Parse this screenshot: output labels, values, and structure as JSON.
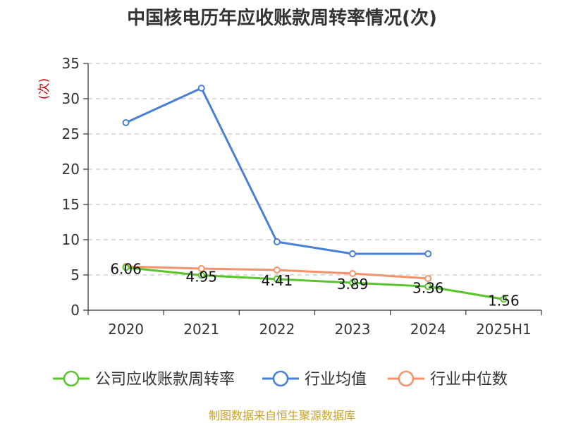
{
  "chart_data": {
    "type": "line",
    "title": "中国核电历年应收账款周转率情况(次)",
    "ylabel": "(次)",
    "xlabel": "",
    "categories": [
      "2020",
      "2021",
      "2022",
      "2023",
      "2024",
      "2025H1"
    ],
    "ylim": [
      0,
      35
    ],
    "yticks": [
      0,
      5,
      10,
      15,
      20,
      25,
      30,
      35
    ],
    "grid": true,
    "legend_position": "bottom",
    "series": [
      {
        "name": "公司应收账款周转率",
        "color": "#5ac42a",
        "values": [
          6.06,
          4.95,
          4.41,
          3.89,
          3.36,
          1.56
        ],
        "labels": [
          "6.06",
          "4.95",
          "4.41",
          "3.89",
          "3.36",
          "1.56"
        ]
      },
      {
        "name": "行业均值",
        "color": "#4a7fd8",
        "values": [
          26.6,
          31.5,
          9.7,
          8.0,
          8.0,
          null
        ]
      },
      {
        "name": "行业中位数",
        "color": "#f5926a",
        "values": [
          6.2,
          5.9,
          5.7,
          5.2,
          4.5,
          null
        ]
      }
    ]
  },
  "source": "制图数据来自恒生聚源数据库"
}
